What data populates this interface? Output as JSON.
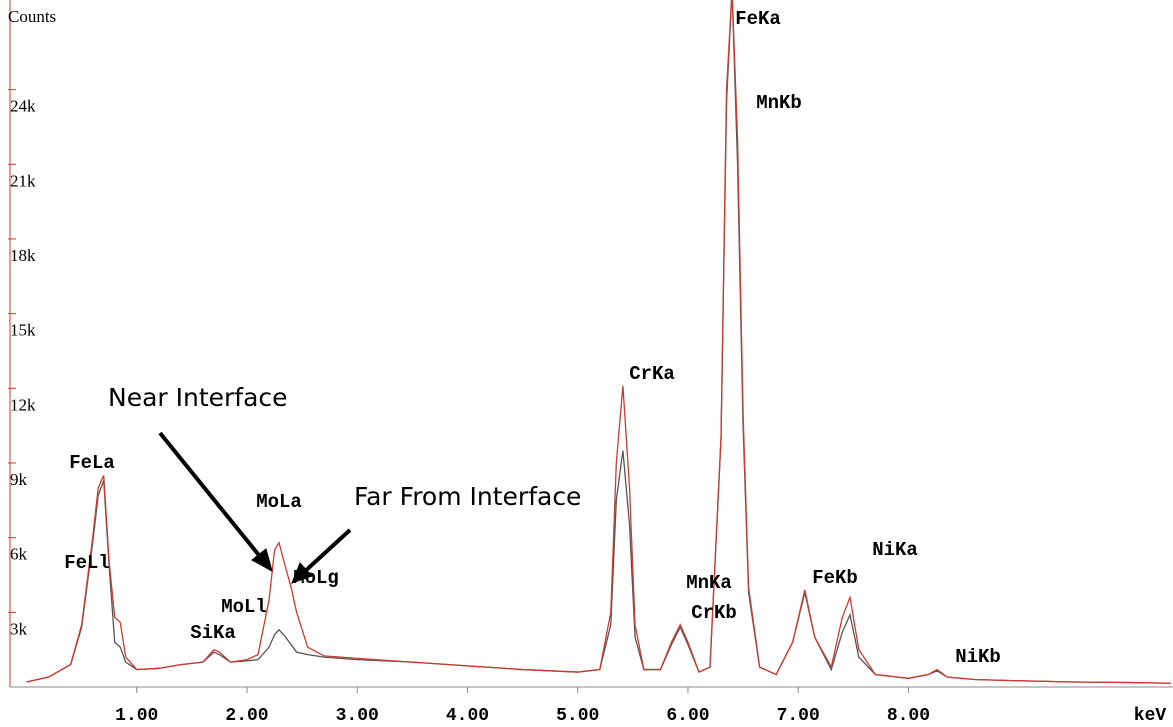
{
  "chart_data": {
    "type": "line",
    "y_label": "Counts",
    "x_label": "keV",
    "x": [
      0.0,
      0.2,
      0.4,
      0.5,
      0.6,
      0.65,
      0.7,
      0.75,
      0.8,
      0.85,
      0.9,
      1.0,
      1.2,
      1.4,
      1.6,
      1.7,
      1.75,
      1.85,
      2.0,
      2.1,
      2.2,
      2.25,
      2.29,
      2.35,
      2.4,
      2.45,
      2.55,
      2.7,
      3.0,
      3.5,
      4.0,
      4.5,
      5.0,
      5.2,
      5.3,
      5.35,
      5.41,
      5.47,
      5.52,
      5.6,
      5.75,
      5.85,
      5.93,
      6.0,
      6.1,
      6.2,
      6.3,
      6.35,
      6.4,
      6.45,
      6.5,
      6.55,
      6.65,
      6.8,
      6.95,
      7.06,
      7.15,
      7.3,
      7.4,
      7.47,
      7.55,
      7.7,
      8.0,
      8.18,
      8.26,
      8.35,
      8.6,
      9.0,
      9.5,
      10.0,
      10.38
    ],
    "series": [
      {
        "name": "Near Interface",
        "color": "#cc3b2e",
        "values": [
          200,
          400,
          900,
          2500,
          6000,
          8000,
          8500,
          5000,
          2800,
          2600,
          1200,
          700,
          750,
          900,
          1000,
          1500,
          1400,
          1000,
          1100,
          1300,
          3500,
          5500,
          5800,
          4800,
          4000,
          3000,
          1600,
          1250,
          1150,
          1000,
          850,
          700,
          600,
          700,
          3000,
          9000,
          12100,
          8000,
          2500,
          700,
          700,
          1800,
          2500,
          1800,
          600,
          800,
          10000,
          24000,
          28000,
          22000,
          11000,
          4000,
          800,
          500,
          1800,
          3900,
          2000,
          800,
          2800,
          3600,
          1500,
          500,
          350,
          500,
          700,
          400,
          300,
          250,
          200,
          180,
          150
        ]
      },
      {
        "name": "Far From Interface",
        "color": "#555555",
        "values": [
          200,
          400,
          900,
          2400,
          5800,
          7700,
          8300,
          4800,
          1800,
          1600,
          1000,
          700,
          750,
          900,
          1000,
          1400,
          1300,
          1000,
          1050,
          1100,
          1600,
          2100,
          2300,
          2000,
          1700,
          1400,
          1300,
          1200,
          1100,
          1000,
          850,
          700,
          600,
          700,
          2500,
          7500,
          9500,
          6500,
          2000,
          700,
          700,
          1700,
          2400,
          1700,
          600,
          800,
          10000,
          23500,
          28000,
          21000,
          10500,
          3800,
          800,
          500,
          1800,
          3800,
          2000,
          700,
          2200,
          2900,
          1200,
          500,
          350,
          500,
          650,
          400,
          300,
          250,
          200,
          180,
          150
        ]
      }
    ],
    "xlim": [
      -0.15,
      10.4
    ],
    "ylim": [
      0,
      27600
    ],
    "xticks": [
      {
        "value": 1,
        "label": "1.00"
      },
      {
        "value": 2,
        "label": "2.00"
      },
      {
        "value": 3,
        "label": "3.00"
      },
      {
        "value": 4,
        "label": "4.00"
      },
      {
        "value": 5,
        "label": "5.00"
      },
      {
        "value": 6,
        "label": "6.00"
      },
      {
        "value": 7,
        "label": "7.00"
      },
      {
        "value": 8,
        "label": "8.00"
      }
    ],
    "yticks": [
      {
        "value": 3000,
        "label": "3k"
      },
      {
        "value": 6000,
        "label": "6k"
      },
      {
        "value": 9000,
        "label": "9k"
      },
      {
        "value": 12000,
        "label": "12k"
      },
      {
        "value": 15000,
        "label": "15k"
      },
      {
        "value": 18000,
        "label": "18k"
      },
      {
        "value": 21000,
        "label": "21k"
      },
      {
        "value": 24000,
        "label": "24k"
      }
    ],
    "peak_labels": [
      "FeKa",
      "MnKb",
      "CrKa",
      "FeLa",
      "FeLl",
      "MoLa",
      "MoLg",
      "MoLl",
      "SiKa",
      "MnKa",
      "CrKb",
      "FeKb",
      "NiKa",
      "NiKb"
    ]
  }
}
